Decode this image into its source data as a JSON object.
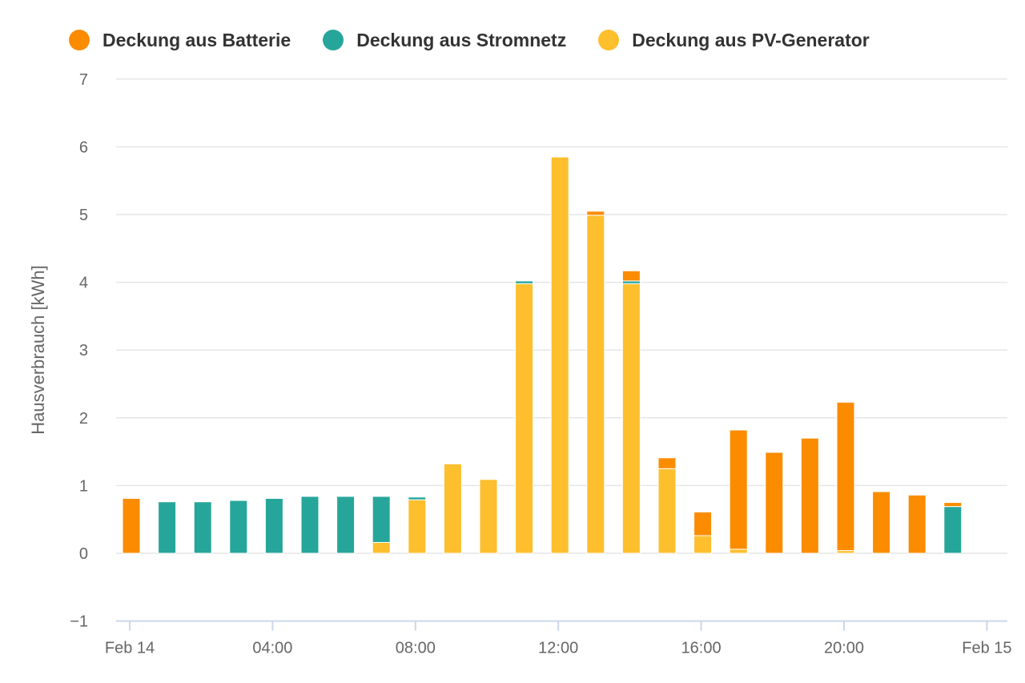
{
  "chart_data": {
    "type": "bar",
    "stacked": true,
    "ylabel": "Hausverbrauch [kWh]",
    "ylim": [
      -1,
      7
    ],
    "yticks": [
      -1,
      0,
      1,
      2,
      3,
      4,
      5,
      6,
      7
    ],
    "grid": true,
    "legend_position": "top-left",
    "x_ticks": [
      {
        "label": "Feb 14",
        "hour": 0
      },
      {
        "label": "04:00",
        "hour": 4
      },
      {
        "label": "08:00",
        "hour": 8
      },
      {
        "label": "12:00",
        "hour": 12
      },
      {
        "label": "16:00",
        "hour": 16
      },
      {
        "label": "20:00",
        "hour": 20
      },
      {
        "label": "Feb 15",
        "hour": 24
      }
    ],
    "hours": [
      0,
      1,
      2,
      3,
      4,
      5,
      6,
      7,
      8,
      9,
      10,
      11,
      12,
      13,
      14,
      15,
      16,
      17,
      18,
      19,
      20,
      21,
      22,
      23
    ],
    "series": [
      {
        "name": "Deckung aus PV-Generator",
        "color": "#FDBF2D",
        "values": [
          0,
          0,
          0,
          0,
          0,
          0,
          0,
          0.16,
          0.79,
          1.32,
          1.09,
          3.98,
          5.85,
          4.99,
          3.98,
          1.25,
          0.26,
          0.06,
          0,
          0,
          0.04,
          0,
          0,
          0
        ]
      },
      {
        "name": "Deckung aus Stromnetz",
        "color": "#26A69A",
        "values": [
          0,
          0.76,
          0.76,
          0.78,
          0.81,
          0.84,
          0.84,
          0.68,
          0.04,
          0,
          0,
          0.04,
          0,
          0,
          0.04,
          0,
          0,
          0,
          0,
          0,
          0,
          0,
          0,
          0.69
        ]
      },
      {
        "name": "Deckung aus Batterie",
        "color": "#FB8C00",
        "values": [
          0.81,
          0,
          0,
          0,
          0,
          0,
          0,
          0,
          0,
          0,
          0,
          0,
          0,
          0.06,
          0.15,
          0.16,
          0.35,
          1.76,
          1.49,
          1.7,
          2.19,
          0.91,
          0.86,
          0.06
        ]
      }
    ],
    "legend_order": [
      "Deckung aus Batterie",
      "Deckung aus Stromnetz",
      "Deckung aus PV-Generator"
    ],
    "colors": {
      "grid": "#E6E6E6",
      "axis": "#CCD6EB",
      "text": "#666666",
      "legend_text": "#333333"
    }
  }
}
